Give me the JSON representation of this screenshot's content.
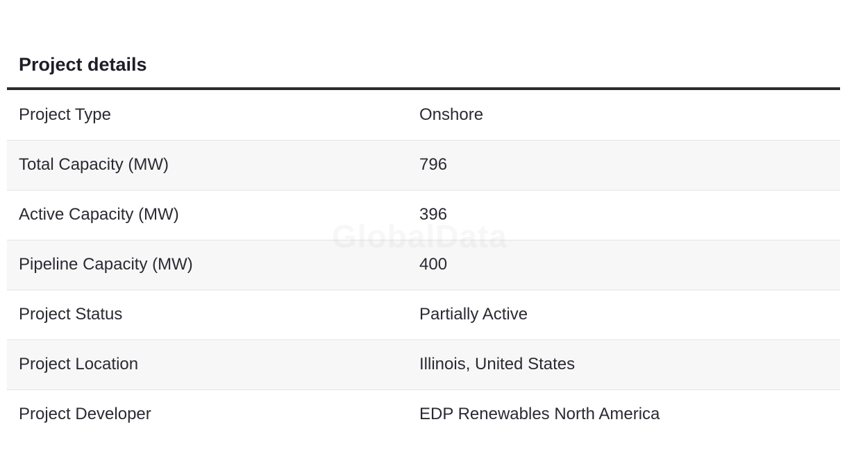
{
  "section": {
    "title": "Project details"
  },
  "watermark": "GlobalData",
  "details": [
    {
      "label": "Project Type",
      "value": "Onshore"
    },
    {
      "label": "Total Capacity (MW)",
      "value": "796"
    },
    {
      "label": "Active Capacity (MW)",
      "value": "396"
    },
    {
      "label": "Pipeline Capacity (MW)",
      "value": "400"
    },
    {
      "label": "Project Status",
      "value": "Partially Active"
    },
    {
      "label": "Project Location",
      "value": "Illinois, United States"
    },
    {
      "label": "Project Developer",
      "value": "EDP Renewables North America"
    }
  ]
}
